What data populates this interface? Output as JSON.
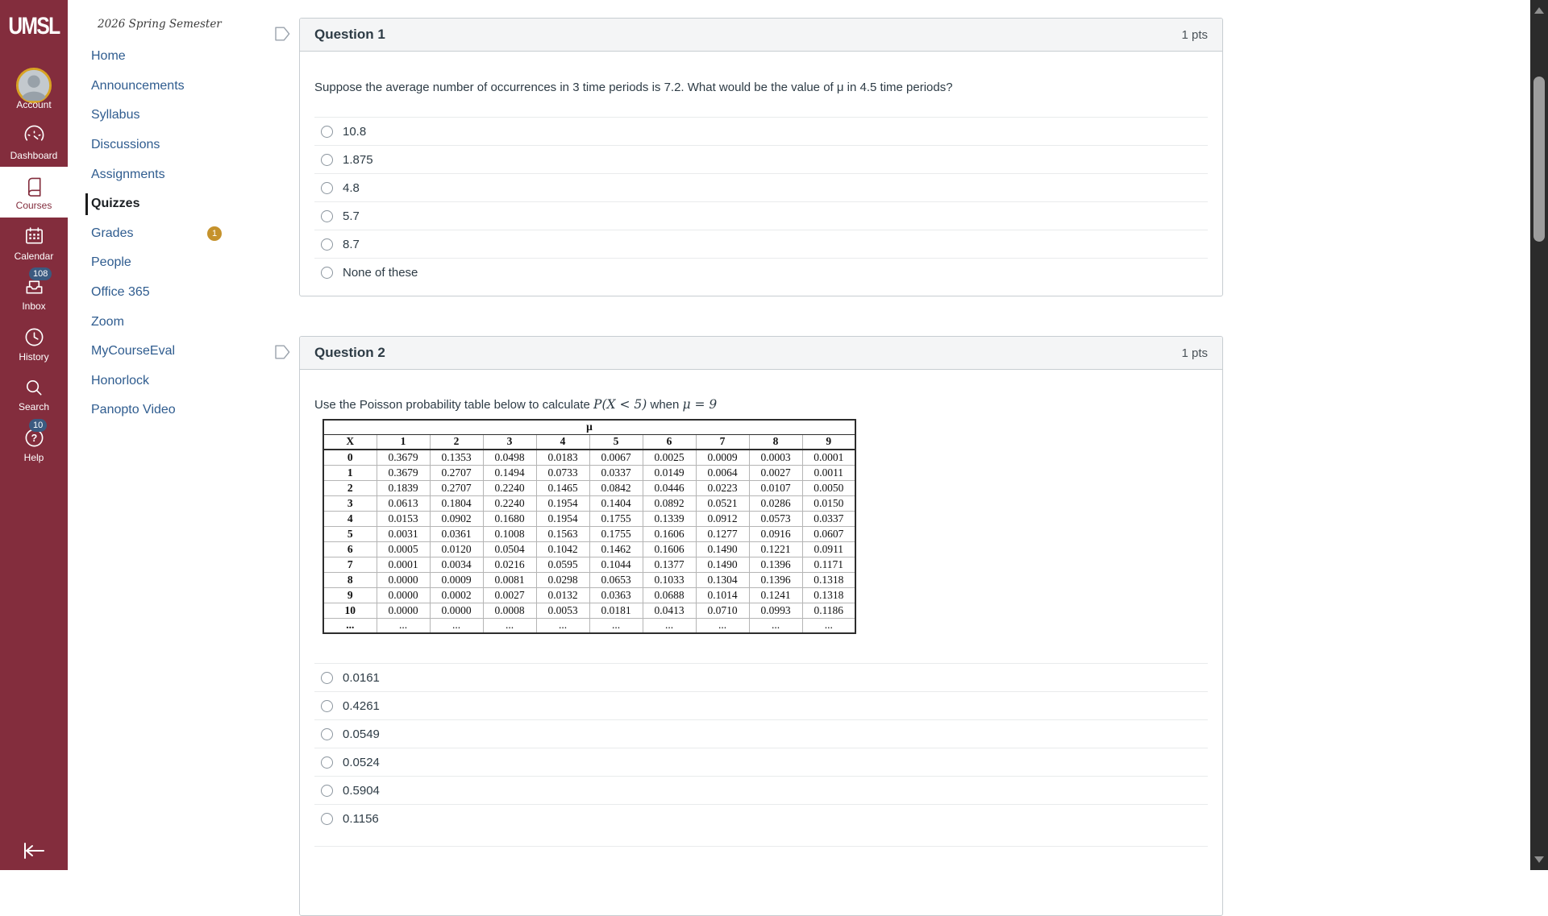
{
  "colors": {
    "brand": "#832d3d",
    "nav-link": "#2f5c8f",
    "badge-navy": "#3b5a80",
    "badge-gold": "#c5922c",
    "text": "#2D3B45"
  },
  "sidebar": {
    "logo": "UMSL",
    "items": [
      {
        "label": "Account",
        "icon": "account-icon"
      },
      {
        "label": "Dashboard",
        "icon": "dashboard-icon"
      },
      {
        "label": "Courses",
        "icon": "courses-icon",
        "active": true
      },
      {
        "label": "Calendar",
        "icon": "calendar-icon"
      },
      {
        "label": "Inbox",
        "icon": "inbox-icon",
        "badge": "108"
      },
      {
        "label": "History",
        "icon": "history-icon"
      },
      {
        "label": "Search",
        "icon": "search-icon"
      },
      {
        "label": "Help",
        "icon": "help-icon",
        "badge": "10"
      }
    ]
  },
  "course_nav": {
    "term": "2026 Spring Semester",
    "items": [
      {
        "label": "Home"
      },
      {
        "label": "Announcements"
      },
      {
        "label": "Syllabus"
      },
      {
        "label": "Discussions"
      },
      {
        "label": "Assignments"
      },
      {
        "label": "Quizzes",
        "active": true
      },
      {
        "label": "Grades",
        "badge": "1"
      },
      {
        "label": "People"
      },
      {
        "label": "Office 365"
      },
      {
        "label": "Zoom"
      },
      {
        "label": "MyCourseEval"
      },
      {
        "label": "Honorlock"
      },
      {
        "label": "Panopto Video"
      }
    ]
  },
  "questions": [
    {
      "title": "Question 1",
      "points": "1 pts",
      "text": "Suppose the average number of occurrences in 3 time periods is 7.2. What would be the value of μ in 4.5 time periods?",
      "options": [
        "10.8",
        "1.875",
        "4.8",
        "5.7",
        "8.7",
        "None of these"
      ]
    },
    {
      "title": "Question 2",
      "points": "1 pts",
      "text": {
        "prefix": "Use the Poisson probability table below to calculate",
        "math1": "P(X < 5)",
        "mid": "when",
        "math2": "μ = 9"
      },
      "table": {
        "mu_label": "μ",
        "corner_label": "X",
        "mu_columns": [
          "1",
          "2",
          "3",
          "4",
          "5",
          "6",
          "7",
          "8",
          "9"
        ],
        "rows": [
          [
            "0",
            "0.3679",
            "0.1353",
            "0.0498",
            "0.0183",
            "0.0067",
            "0.0025",
            "0.0009",
            "0.0003",
            "0.0001"
          ],
          [
            "1",
            "0.3679",
            "0.2707",
            "0.1494",
            "0.0733",
            "0.0337",
            "0.0149",
            "0.0064",
            "0.0027",
            "0.0011"
          ],
          [
            "2",
            "0.1839",
            "0.2707",
            "0.2240",
            "0.1465",
            "0.0842",
            "0.0446",
            "0.0223",
            "0.0107",
            "0.0050"
          ],
          [
            "3",
            "0.0613",
            "0.1804",
            "0.2240",
            "0.1954",
            "0.1404",
            "0.0892",
            "0.0521",
            "0.0286",
            "0.0150"
          ],
          [
            "4",
            "0.0153",
            "0.0902",
            "0.1680",
            "0.1954",
            "0.1755",
            "0.1339",
            "0.0912",
            "0.0573",
            "0.0337"
          ],
          [
            "5",
            "0.0031",
            "0.0361",
            "0.1008",
            "0.1563",
            "0.1755",
            "0.1606",
            "0.1277",
            "0.0916",
            "0.0607"
          ],
          [
            "6",
            "0.0005",
            "0.0120",
            "0.0504",
            "0.1042",
            "0.1462",
            "0.1606",
            "0.1490",
            "0.1221",
            "0.0911"
          ],
          [
            "7",
            "0.0001",
            "0.0034",
            "0.0216",
            "0.0595",
            "0.1044",
            "0.1377",
            "0.1490",
            "0.1396",
            "0.1171"
          ],
          [
            "8",
            "0.0000",
            "0.0009",
            "0.0081",
            "0.0298",
            "0.0653",
            "0.1033",
            "0.1304",
            "0.1396",
            "0.1318"
          ],
          [
            "9",
            "0.0000",
            "0.0002",
            "0.0027",
            "0.0132",
            "0.0363",
            "0.0688",
            "0.1014",
            "0.1241",
            "0.1318"
          ],
          [
            "10",
            "0.0000",
            "0.0000",
            "0.0008",
            "0.0053",
            "0.0181",
            "0.0413",
            "0.0710",
            "0.0993",
            "0.1186"
          ],
          [
            "...",
            "...",
            "...",
            "...",
            "...",
            "...",
            "...",
            "...",
            "...",
            "..."
          ]
        ]
      },
      "options": [
        "0.0161",
        "0.4261",
        "0.0549",
        "0.0524",
        "0.5904",
        "0.1156"
      ]
    }
  ]
}
